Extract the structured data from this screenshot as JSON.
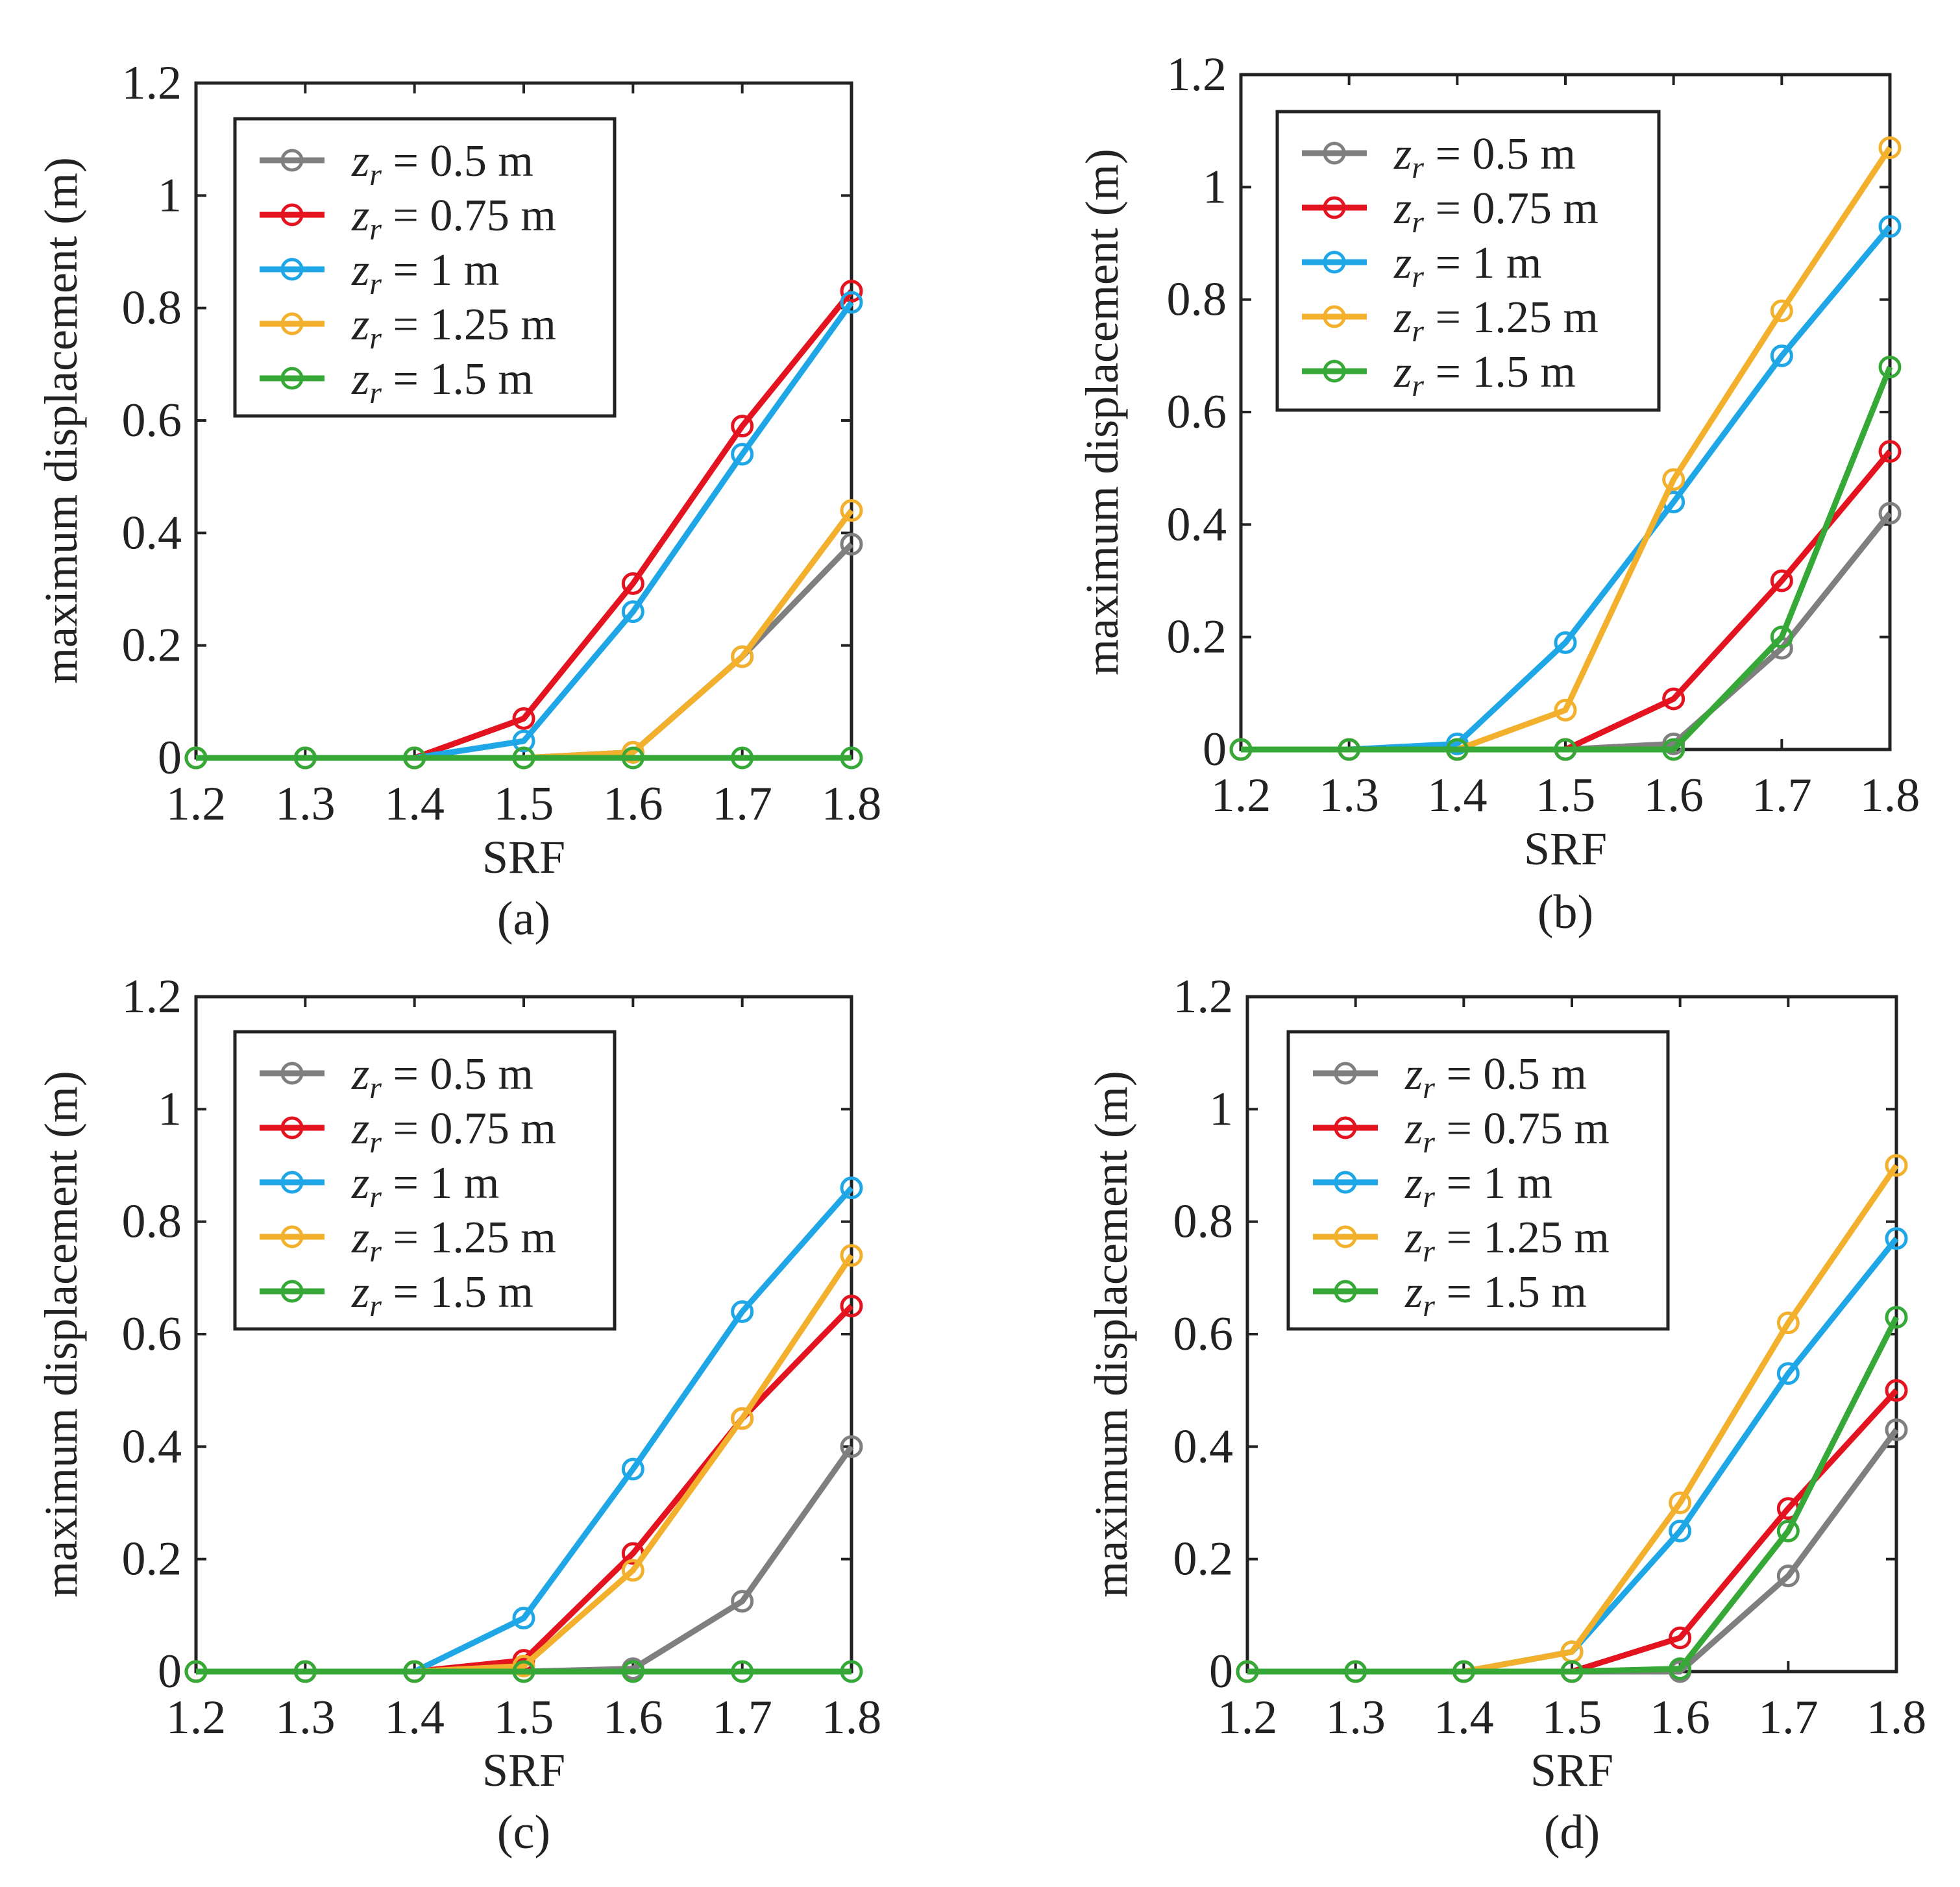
{
  "figure": {
    "type": "multi-panel line chart",
    "panel_count": 4
  },
  "chart_data": [
    {
      "panel": "a",
      "caption": "(a)",
      "type": "line",
      "xlabel": "SRF",
      "ylabel": "maximum displacement (m)",
      "xlim": [
        1.2,
        1.8
      ],
      "ylim": [
        0,
        1.2
      ],
      "xticks": [
        "1.2",
        "1.3",
        "1.4",
        "1.5",
        "1.6",
        "1.7",
        "1.8"
      ],
      "yticks": [
        "0",
        "0.2",
        "0.4",
        "0.6",
        "0.8",
        "1",
        "1.2"
      ],
      "grid": false,
      "legend_position": "top-left",
      "x": [
        1.2,
        1.3,
        1.4,
        1.5,
        1.6,
        1.7,
        1.8
      ],
      "series": [
        {
          "name": "z_r = 0.5 m",
          "label_var": "z",
          "label_sub": "r",
          "label_rest": " = 0.5 m",
          "color": "#7f7f7f",
          "values": [
            0,
            0,
            0,
            0,
            0.01,
            0.18,
            0.38
          ]
        },
        {
          "name": "z_r = 0.75 m",
          "label_var": "z",
          "label_sub": "r",
          "label_rest": " = 0.75 m",
          "color": "#e3141f",
          "values": [
            0,
            0,
            0,
            0.07,
            0.31,
            0.59,
            0.83
          ]
        },
        {
          "name": "z_r = 1 m",
          "label_var": "z",
          "label_sub": "r",
          "label_rest": " = 1 m",
          "color": "#1ea6e6",
          "values": [
            0,
            0,
            0,
            0.03,
            0.26,
            0.54,
            0.81
          ]
        },
        {
          "name": "z_r = 1.25 m",
          "label_var": "z",
          "label_sub": "r",
          "label_rest": " = 1.25 m",
          "color": "#f2b02c",
          "values": [
            0,
            0,
            0,
            0,
            0.01,
            0.18,
            0.44
          ]
        },
        {
          "name": "z_r = 1.5 m",
          "label_var": "z",
          "label_sub": "r",
          "label_rest": " = 1.5 m",
          "color": "#35a837",
          "values": [
            0,
            0,
            0,
            0,
            0,
            0,
            0
          ]
        }
      ]
    },
    {
      "panel": "b",
      "caption": "(b)",
      "type": "line",
      "xlabel": "SRF",
      "ylabel": "maximum displacement (m)",
      "xlim": [
        1.2,
        1.8
      ],
      "ylim": [
        0,
        1.2
      ],
      "xticks": [
        "1.2",
        "1.3",
        "1.4",
        "1.5",
        "1.6",
        "1.7",
        "1.8"
      ],
      "yticks": [
        "0",
        "0.2",
        "0.4",
        "0.6",
        "0.8",
        "1",
        "1.2"
      ],
      "grid": false,
      "legend_position": "top-left",
      "x": [
        1.2,
        1.3,
        1.4,
        1.5,
        1.6,
        1.7,
        1.8
      ],
      "series": [
        {
          "name": "z_r = 0.5 m",
          "label_var": "z",
          "label_sub": "r",
          "label_rest": " = 0.5 m",
          "color": "#7f7f7f",
          "values": [
            0,
            0,
            0,
            0,
            0.01,
            0.18,
            0.42
          ]
        },
        {
          "name": "z_r = 0.75 m",
          "label_var": "z",
          "label_sub": "r",
          "label_rest": " = 0.75 m",
          "color": "#e3141f",
          "values": [
            0,
            0,
            0,
            0,
            0.09,
            0.3,
            0.53
          ]
        },
        {
          "name": "z_r = 1 m",
          "label_var": "z",
          "label_sub": "r",
          "label_rest": " = 1 m",
          "color": "#1ea6e6",
          "values": [
            0,
            0,
            0.01,
            0.19,
            0.44,
            0.7,
            0.93
          ]
        },
        {
          "name": "z_r = 1.25 m",
          "label_var": "z",
          "label_sub": "r",
          "label_rest": " = 1.25 m",
          "color": "#f2b02c",
          "values": [
            0,
            0,
            0,
            0.07,
            0.48,
            0.78,
            1.07
          ]
        },
        {
          "name": "z_r = 1.5 m",
          "label_var": "z",
          "label_sub": "r",
          "label_rest": " = 1.5 m",
          "color": "#35a837",
          "values": [
            0,
            0,
            0,
            0,
            0,
            0.2,
            0.68
          ]
        }
      ]
    },
    {
      "panel": "c",
      "caption": "(c)",
      "type": "line",
      "xlabel": "SRF",
      "ylabel": "maximum displacement (m)",
      "xlim": [
        1.2,
        1.8
      ],
      "ylim": [
        0,
        1.2
      ],
      "xticks": [
        "1.2",
        "1.3",
        "1.4",
        "1.5",
        "1.6",
        "1.7",
        "1.8"
      ],
      "yticks": [
        "0",
        "0.2",
        "0.4",
        "0.6",
        "0.8",
        "1",
        "1.2"
      ],
      "grid": false,
      "legend_position": "top-left",
      "x": [
        1.2,
        1.3,
        1.4,
        1.5,
        1.6,
        1.7,
        1.8
      ],
      "series": [
        {
          "name": "z_r = 0.5 m",
          "label_var": "z",
          "label_sub": "r",
          "label_rest": " = 0.5 m",
          "color": "#7f7f7f",
          "values": [
            0,
            0,
            0,
            0,
            0.005,
            0.125,
            0.4
          ]
        },
        {
          "name": "z_r = 0.75 m",
          "label_var": "z",
          "label_sub": "r",
          "label_rest": " = 0.75 m",
          "color": "#e3141f",
          "values": [
            0,
            0,
            0,
            0.02,
            0.21,
            0.45,
            0.65
          ]
        },
        {
          "name": "z_r = 1 m",
          "label_var": "z",
          "label_sub": "r",
          "label_rest": " = 1 m",
          "color": "#1ea6e6",
          "values": [
            0,
            0,
            0,
            0.095,
            0.36,
            0.64,
            0.86
          ]
        },
        {
          "name": "z_r = 1.25 m",
          "label_var": "z",
          "label_sub": "r",
          "label_rest": " = 1.25 m",
          "color": "#f2b02c",
          "values": [
            0,
            0,
            0,
            0.01,
            0.18,
            0.45,
            0.74
          ]
        },
        {
          "name": "z_r = 1.5 m",
          "label_var": "z",
          "label_sub": "r",
          "label_rest": " = 1.5 m",
          "color": "#35a837",
          "values": [
            0,
            0,
            0,
            0,
            0,
            0,
            0
          ]
        }
      ]
    },
    {
      "panel": "d",
      "caption": "(d)",
      "type": "line",
      "xlabel": "SRF",
      "ylabel": "maximum displacement (m)",
      "xlim": [
        1.2,
        1.8
      ],
      "ylim": [
        0,
        1.2
      ],
      "xticks": [
        "1.2",
        "1.3",
        "1.4",
        "1.5",
        "1.6",
        "1.7",
        "1.8"
      ],
      "yticks": [
        "0",
        "0.2",
        "0.4",
        "0.6",
        "0.8",
        "1",
        "1.2"
      ],
      "grid": false,
      "legend_position": "top-left",
      "x": [
        1.2,
        1.3,
        1.4,
        1.5,
        1.6,
        1.7,
        1.8
      ],
      "series": [
        {
          "name": "z_r = 0.5 m",
          "label_var": "z",
          "label_sub": "r",
          "label_rest": " = 0.5 m",
          "color": "#7f7f7f",
          "values": [
            0,
            0,
            0,
            0,
            0,
            0.17,
            0.43
          ]
        },
        {
          "name": "z_r = 0.75 m",
          "label_var": "z",
          "label_sub": "r",
          "label_rest": " = 0.75 m",
          "color": "#e3141f",
          "values": [
            0,
            0,
            0,
            0,
            0.06,
            0.29,
            0.5
          ]
        },
        {
          "name": "z_r = 1 m",
          "label_var": "z",
          "label_sub": "r",
          "label_rest": " = 1 m",
          "color": "#1ea6e6",
          "values": [
            0,
            0,
            0,
            0.035,
            0.25,
            0.53,
            0.77
          ]
        },
        {
          "name": "z_r = 1.25 m",
          "label_var": "z",
          "label_sub": "r",
          "label_rest": " = 1.25 m",
          "color": "#f2b02c",
          "values": [
            0,
            0,
            0,
            0.035,
            0.3,
            0.62,
            0.9
          ]
        },
        {
          "name": "z_r = 1.5 m",
          "label_var": "z",
          "label_sub": "r",
          "label_rest": " = 1.5 m",
          "color": "#35a837",
          "values": [
            0,
            0,
            0,
            0,
            0.005,
            0.25,
            0.63
          ]
        }
      ]
    }
  ]
}
